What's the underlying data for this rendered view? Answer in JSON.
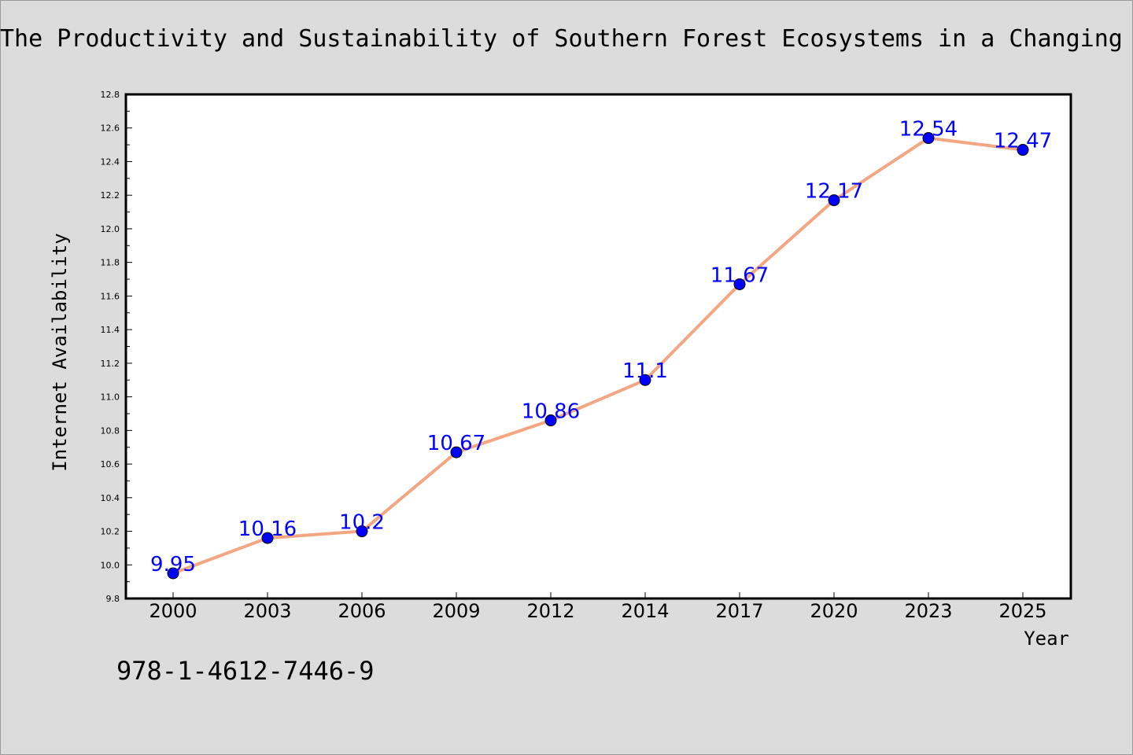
{
  "chart_data": {
    "type": "line",
    "title": "The Productivity and Sustainability of Southern Forest Ecosystems in a Changing",
    "xlabel": "Year",
    "ylabel": "Internet Availability",
    "categories": [
      "2000",
      "2003",
      "2006",
      "2009",
      "2012",
      "2014",
      "2017",
      "2020",
      "2023",
      "2025"
    ],
    "series": [
      {
        "values": [
          9.95,
          10.16,
          10.2,
          10.67,
          10.86,
          11.1,
          11.67,
          12.17,
          12.54,
          12.47
        ],
        "data_labels": [
          "9.95",
          "10.16",
          "10.2",
          "10.67",
          "10.86",
          "11.1",
          "11.67",
          "12.17",
          "12.54",
          "12.47"
        ],
        "line_color": "#f4a582",
        "marker_color": "#0000ff"
      }
    ],
    "ylim": [
      9.8,
      12.8
    ],
    "yticks": [
      "9.8",
      "10.0",
      "10.2",
      "10.4",
      "10.6",
      "10.8",
      "11.0",
      "11.2",
      "11.4",
      "11.6",
      "11.8",
      "12.0",
      "12.2",
      "12.4",
      "12.6",
      "12.8"
    ],
    "grid": false,
    "legend": "none"
  },
  "footer": {
    "isbn": "978-1-4612-7446-9"
  },
  "colors": {
    "background": "#dcdcdc",
    "plot_background": "#ffffff",
    "line": "#f4a582",
    "marker": "#0000ff",
    "data_label": "#0000ff"
  }
}
